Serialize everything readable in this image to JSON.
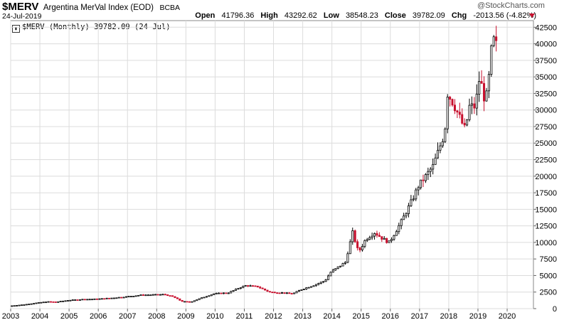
{
  "header": {
    "symbol": "$MERV",
    "index_name": "Argentina MerVal Index (EOD)",
    "exchange": "BCBA",
    "date": "24-Jul-2019",
    "brand": "@StockCharts.com",
    "open_label": "Open",
    "open": "41796.36",
    "high_label": "High",
    "high": "43292.62",
    "low_label": "Low",
    "low": "38548.23",
    "close_label": "Close",
    "close": "39782.09",
    "chg_label": "Chg",
    "chg": "-2013.56 (-4.82%)"
  },
  "legend": {
    "icon": "candle-icon",
    "text": "$MERV (Monthly) 39782.09 (24 Jul)"
  },
  "colors": {
    "up": "#000000",
    "down": "#c8102e",
    "grid": "#dcdcdc",
    "frame": "#888888"
  },
  "chart_data": {
    "type": "candlestick",
    "title": "Argentina MerVal Index (EOD)",
    "period": "Monthly",
    "x_tick_labels": [
      "2003",
      "2004",
      "2005",
      "2006",
      "2007",
      "2008",
      "2009",
      "2010",
      "2011",
      "2012",
      "2013",
      "2014",
      "2015",
      "2016",
      "2017",
      "2018",
      "2019",
      "2020"
    ],
    "y_tick_labels": [
      "0",
      "2500",
      "5000",
      "7500",
      "10000",
      "12500",
      "15000",
      "17500",
      "20000",
      "22500",
      "25000",
      "27500",
      "30000",
      "32500",
      "35000",
      "37500",
      "40000",
      "42500"
    ],
    "ylim": [
      0,
      43500
    ],
    "xlim": [
      2003.0,
      2020.9
    ],
    "anchors": [
      {
        "t": 2003.0,
        "v": 400
      },
      {
        "t": 2003.5,
        "v": 600
      },
      {
        "t": 2004.0,
        "v": 900
      },
      {
        "t": 2004.3,
        "v": 1050
      },
      {
        "t": 2004.6,
        "v": 1000
      },
      {
        "t": 2005.0,
        "v": 1250
      },
      {
        "t": 2005.5,
        "v": 1400
      },
      {
        "t": 2006.0,
        "v": 1450
      },
      {
        "t": 2006.5,
        "v": 1600
      },
      {
        "t": 2007.0,
        "v": 1800
      },
      {
        "t": 2007.5,
        "v": 2050
      },
      {
        "t": 2008.0,
        "v": 2100
      },
      {
        "t": 2008.3,
        "v": 2150
      },
      {
        "t": 2008.6,
        "v": 1800
      },
      {
        "t": 2008.9,
        "v": 1100
      },
      {
        "t": 2009.2,
        "v": 1000
      },
      {
        "t": 2009.5,
        "v": 1500
      },
      {
        "t": 2010.0,
        "v": 2250
      },
      {
        "t": 2010.5,
        "v": 2400
      },
      {
        "t": 2010.9,
        "v": 3200
      },
      {
        "t": 2011.1,
        "v": 3500
      },
      {
        "t": 2011.5,
        "v": 3300
      },
      {
        "t": 2011.9,
        "v": 2500
      },
      {
        "t": 2012.3,
        "v": 2400
      },
      {
        "t": 2012.7,
        "v": 2250
      },
      {
        "t": 2013.0,
        "v": 2900
      },
      {
        "t": 2013.4,
        "v": 3500
      },
      {
        "t": 2013.8,
        "v": 4200
      },
      {
        "t": 2014.0,
        "v": 5500
      },
      {
        "t": 2014.5,
        "v": 7000
      },
      {
        "t": 2014.75,
        "v": 11500
      },
      {
        "t": 2014.95,
        "v": 8500
      },
      {
        "t": 2015.2,
        "v": 10500
      },
      {
        "t": 2015.5,
        "v": 11500
      },
      {
        "t": 2015.8,
        "v": 10500
      },
      {
        "t": 2016.0,
        "v": 10000
      },
      {
        "t": 2016.4,
        "v": 13000
      },
      {
        "t": 2016.8,
        "v": 16500
      },
      {
        "t": 2017.0,
        "v": 18500
      },
      {
        "t": 2017.5,
        "v": 21500
      },
      {
        "t": 2017.9,
        "v": 26500
      },
      {
        "t": 2018.0,
        "v": 32500
      },
      {
        "t": 2018.2,
        "v": 31000
      },
      {
        "t": 2018.45,
        "v": 28500
      },
      {
        "t": 2018.6,
        "v": 27000
      },
      {
        "t": 2018.75,
        "v": 30500
      },
      {
        "t": 2018.95,
        "v": 30500
      },
      {
        "t": 2019.1,
        "v": 35000
      },
      {
        "t": 2019.3,
        "v": 31000
      },
      {
        "t": 2019.45,
        "v": 36000
      },
      {
        "t": 2019.55,
        "v": 41800
      },
      {
        "t": 2019.6,
        "v": 39782
      }
    ]
  }
}
